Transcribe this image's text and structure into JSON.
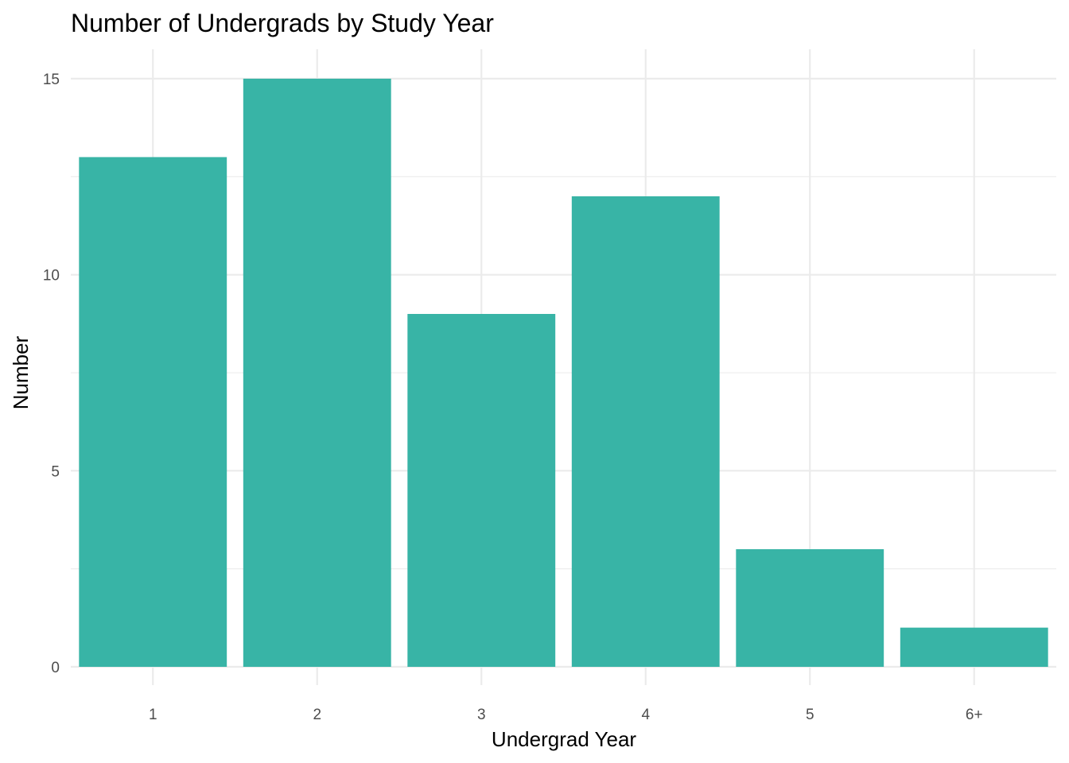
{
  "chart_data": {
    "type": "bar",
    "title": "Number of Undergrads by Study Year",
    "xlabel": "Undergrad Year",
    "ylabel": "Number",
    "categories": [
      "1",
      "2",
      "3",
      "4",
      "5",
      "6+"
    ],
    "values": [
      13,
      15,
      9,
      12,
      3,
      1
    ],
    "ylim": [
      0,
      15
    ],
    "yticks": [
      0,
      5,
      10,
      15
    ],
    "bar_color": "#38b4a6",
    "grid": true,
    "legend": "none"
  }
}
